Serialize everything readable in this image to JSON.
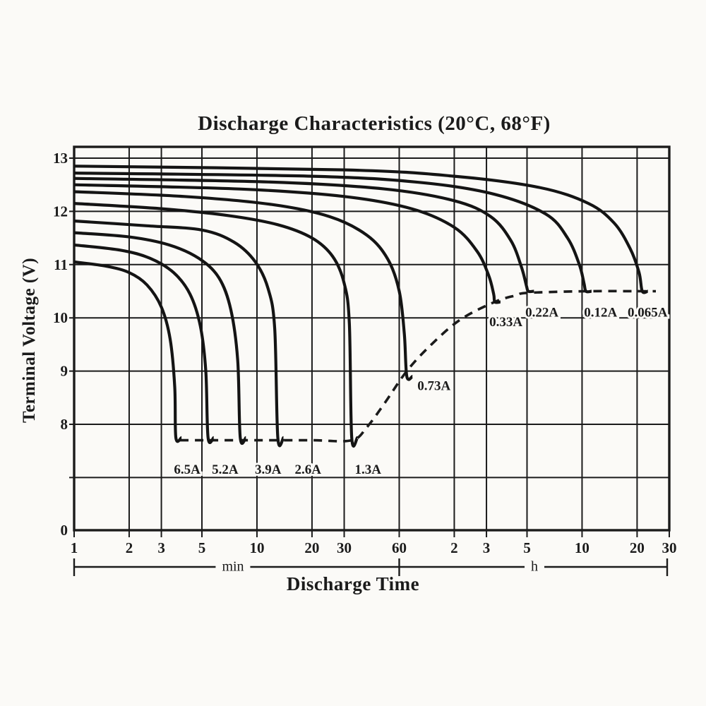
{
  "page": {
    "background": "#fbfaf7",
    "ink": "#1b1b1b"
  },
  "chart_data": {
    "type": "line",
    "title": "Discharge Characteristics (20°C, 68°F)",
    "xlabel": "Discharge Time",
    "ylabel": "Terminal Voltage (V)",
    "x_scale": "log",
    "x_range_minutes": [
      1,
      1800
    ],
    "grid": true,
    "y_axis": {
      "unit": "V",
      "tick_labels": [
        "13",
        "12",
        "11",
        "10",
        "9",
        "8",
        "0"
      ],
      "tick_voltages": [
        13,
        12,
        11,
        10,
        9,
        8,
        0
      ],
      "gridline_voltages": [
        13,
        12,
        11,
        10,
        9,
        8,
        7
      ],
      "axis_broken_below": 8,
      "bottom_border_label": "0"
    },
    "x_axis": {
      "unit_groups": [
        {
          "unit": "min",
          "span_minutes": [
            1,
            60
          ]
        },
        {
          "unit": "h",
          "span_minutes": [
            60,
            1800
          ]
        }
      ],
      "ticks": [
        {
          "label": "1",
          "minutes": 1
        },
        {
          "label": "2",
          "minutes": 2
        },
        {
          "label": "3",
          "minutes": 3
        },
        {
          "label": "5",
          "minutes": 5
        },
        {
          "label": "10",
          "minutes": 10
        },
        {
          "label": "20",
          "minutes": 20
        },
        {
          "label": "30",
          "minutes": 30
        },
        {
          "label": "60",
          "minutes": 60
        },
        {
          "label": "2",
          "minutes": 120
        },
        {
          "label": "3",
          "minutes": 180
        },
        {
          "label": "5",
          "minutes": 300
        },
        {
          "label": "10",
          "minutes": 600
        },
        {
          "label": "20",
          "minutes": 1200
        },
        {
          "label": "30",
          "minutes": 1800
        }
      ]
    },
    "series": [
      {
        "label": "6.5A",
        "discharge_current": "6.5A",
        "points_t_v": [
          [
            1,
            11.05
          ],
          [
            1.5,
            10.97
          ],
          [
            2,
            10.85
          ],
          [
            2.5,
            10.62
          ],
          [
            3,
            10.2
          ],
          [
            3.35,
            9.6
          ],
          [
            3.55,
            8.7
          ],
          [
            3.6,
            7.75
          ]
        ],
        "end_time_min": 3.6,
        "end_voltage": 7.75,
        "label_anchor_t_v": [
          4.15,
          7.15
        ]
      },
      {
        "label": "5.2A",
        "discharge_current": "5.2A",
        "points_t_v": [
          [
            1,
            11.37
          ],
          [
            1.8,
            11.27
          ],
          [
            2.6,
            11.12
          ],
          [
            3.5,
            10.85
          ],
          [
            4.3,
            10.45
          ],
          [
            4.9,
            9.85
          ],
          [
            5.25,
            9.0
          ],
          [
            5.4,
            7.75
          ]
        ],
        "end_time_min": 5.4,
        "end_voltage": 7.75,
        "label_anchor_t_v": [
          6.7,
          7.15
        ]
      },
      {
        "label": "3.9A",
        "discharge_current": "3.9A",
        "points_t_v": [
          [
            1,
            11.6
          ],
          [
            2,
            11.52
          ],
          [
            3.3,
            11.37
          ],
          [
            4.8,
            11.12
          ],
          [
            6.2,
            10.75
          ],
          [
            7.2,
            10.15
          ],
          [
            7.85,
            9.2
          ],
          [
            8.1,
            7.75
          ]
        ],
        "end_time_min": 8.1,
        "end_voltage": 7.75,
        "label_anchor_t_v": [
          11.5,
          7.15
        ]
      },
      {
        "label": "2.6A",
        "discharge_current": "2.6A",
        "points_t_v": [
          [
            1,
            11.82
          ],
          [
            2.5,
            11.73
          ],
          [
            5,
            11.65
          ],
          [
            7.5,
            11.42
          ],
          [
            9.8,
            11.05
          ],
          [
            11.5,
            10.55
          ],
          [
            12.5,
            9.8
          ],
          [
            13,
            7.75
          ]
        ],
        "end_time_min": 13,
        "end_voltage": 7.75,
        "label_anchor_t_v": [
          19,
          7.15
        ]
      },
      {
        "label": "1.3A",
        "discharge_current": "1.3A",
        "points_t_v": [
          [
            1,
            12.15
          ],
          [
            3,
            12.05
          ],
          [
            7,
            11.92
          ],
          [
            13,
            11.75
          ],
          [
            20,
            11.5
          ],
          [
            26,
            11.15
          ],
          [
            30,
            10.65
          ],
          [
            32,
            9.9
          ],
          [
            33,
            7.75
          ]
        ],
        "end_time_min": 33,
        "end_voltage": 7.75,
        "label_anchor_t_v": [
          40.5,
          7.15
        ]
      },
      {
        "label": "0.73A",
        "discharge_current": "0.73A",
        "points_t_v": [
          [
            1,
            12.37
          ],
          [
            4,
            12.28
          ],
          [
            12,
            12.13
          ],
          [
            25,
            11.9
          ],
          [
            40,
            11.55
          ],
          [
            52,
            11.1
          ],
          [
            60,
            10.5
          ],
          [
            64,
            9.7
          ],
          [
            66,
            8.9
          ]
        ],
        "end_time_min": 66,
        "end_voltage": 8.9,
        "label_anchor_t_v": [
          93,
          8.72
        ]
      },
      {
        "label": "0.33A",
        "discharge_current": "0.33A",
        "points_t_v": [
          [
            1,
            12.5
          ],
          [
            8,
            12.42
          ],
          [
            30,
            12.28
          ],
          [
            70,
            12.05
          ],
          [
            120,
            11.7
          ],
          [
            160,
            11.25
          ],
          [
            185,
            10.8
          ],
          [
            197,
            10.45
          ],
          [
            200,
            10.3
          ]
        ],
        "end_time_min": 200,
        "end_voltage": 10.3,
        "label_anchor_t_v": [
          230,
          9.92
        ]
      },
      {
        "label": "0.22A",
        "discharge_current": "0.22A",
        "points_t_v": [
          [
            1,
            12.62
          ],
          [
            12,
            12.55
          ],
          [
            50,
            12.42
          ],
          [
            120,
            12.2
          ],
          [
            190,
            11.9
          ],
          [
            245,
            11.45
          ],
          [
            280,
            10.95
          ],
          [
            298,
            10.6
          ],
          [
            305,
            10.5
          ]
        ],
        "end_time_min": 305,
        "end_voltage": 10.5,
        "label_anchor_t_v": [
          362,
          10.1
        ]
      },
      {
        "label": "0.12A",
        "discharge_current": "0.12A",
        "points_t_v": [
          [
            1,
            12.72
          ],
          [
            20,
            12.66
          ],
          [
            80,
            12.54
          ],
          [
            200,
            12.32
          ],
          [
            380,
            11.95
          ],
          [
            500,
            11.5
          ],
          [
            580,
            11.0
          ],
          [
            615,
            10.65
          ],
          [
            630,
            10.5
          ]
        ],
        "end_time_min": 630,
        "end_voltage": 10.5,
        "label_anchor_t_v": [
          758,
          10.1
        ]
      },
      {
        "label": "0.065A",
        "discharge_current": "0.065A",
        "points_t_v": [
          [
            1,
            12.85
          ],
          [
            30,
            12.78
          ],
          [
            120,
            12.66
          ],
          [
            350,
            12.45
          ],
          [
            650,
            12.15
          ],
          [
            900,
            11.78
          ],
          [
            1100,
            11.3
          ],
          [
            1230,
            10.85
          ],
          [
            1280,
            10.5
          ]
        ],
        "end_time_min": 1280,
        "end_voltage": 10.5,
        "label_anchor_t_v": [
          1370,
          10.1
        ]
      }
    ],
    "cutoff_line": {
      "style": "dashed",
      "description": "final discharge voltage locus",
      "points_t_v": [
        [
          3.8,
          7.7
        ],
        [
          10,
          7.7
        ],
        [
          20,
          7.7
        ],
        [
          33,
          7.7
        ],
        [
          40,
          7.95
        ],
        [
          50,
          8.4
        ],
        [
          66,
          9.0
        ],
        [
          90,
          9.5
        ],
        [
          130,
          9.97
        ],
        [
          200,
          10.3
        ],
        [
          260,
          10.42
        ],
        [
          305,
          10.47
        ],
        [
          630,
          10.5
        ],
        [
          1280,
          10.5
        ],
        [
          1520,
          10.5
        ]
      ]
    }
  }
}
